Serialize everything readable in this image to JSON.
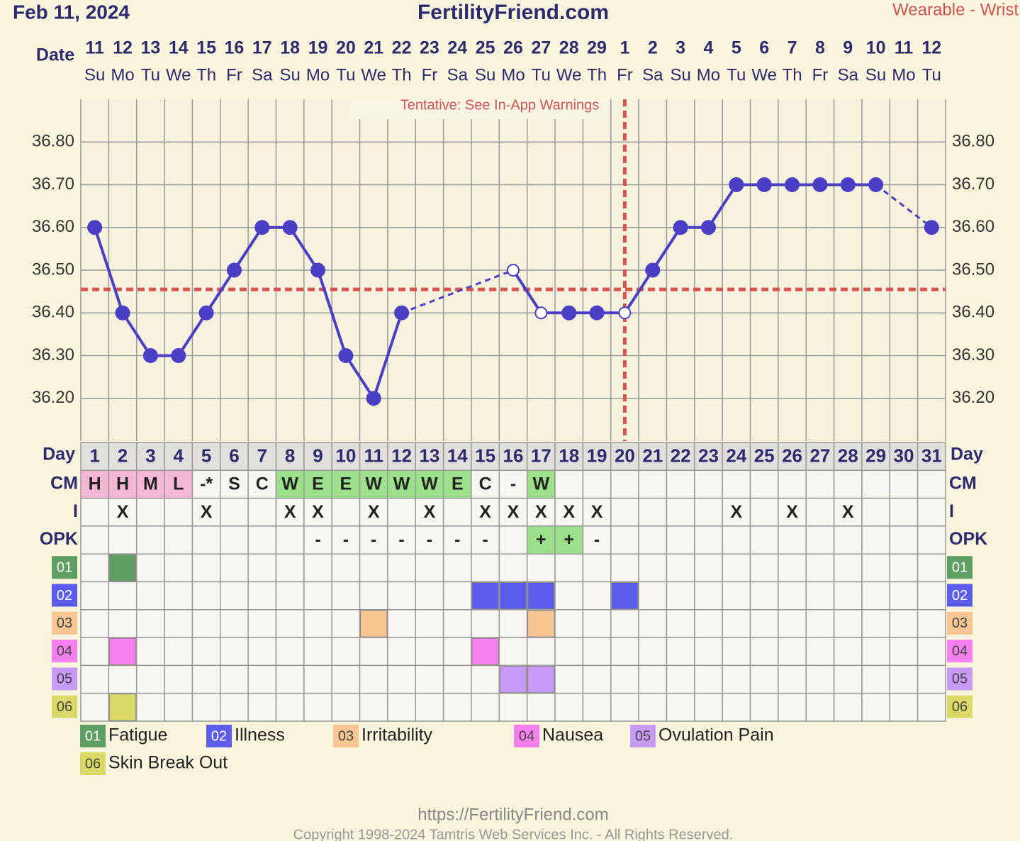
{
  "header": {
    "date": "Feb 11, 2024",
    "site": "FertilityFriend.com",
    "source": "Wearable - Wrist",
    "note": "Tentative: See In-App Warnings"
  },
  "dates": {
    "label": "Date",
    "days": [
      11,
      12,
      13,
      14,
      15,
      16,
      17,
      18,
      19,
      20,
      21,
      22,
      23,
      24,
      25,
      26,
      27,
      28,
      29,
      1,
      2,
      3,
      4,
      5,
      6,
      7,
      8,
      9,
      10,
      11,
      12
    ],
    "weekdays": [
      "Su",
      "Mo",
      "Tu",
      "We",
      "Th",
      "Fr",
      "Sa",
      "Su",
      "Mo",
      "Tu",
      "We",
      "Th",
      "Fr",
      "Sa",
      "Su",
      "Mo",
      "Tu",
      "We",
      "Th",
      "Fr",
      "Sa",
      "Su",
      "Mo",
      "Tu",
      "We",
      "Th",
      "Fr",
      "Sa",
      "Su",
      "Mo",
      "Tu"
    ]
  },
  "chart_data": {
    "type": "line",
    "x_label": "Day",
    "categories": [
      1,
      2,
      3,
      4,
      5,
      6,
      7,
      8,
      9,
      10,
      11,
      12,
      13,
      14,
      15,
      16,
      17,
      18,
      19,
      20,
      21,
      22,
      23,
      24,
      25,
      26,
      27,
      28,
      29,
      30,
      31
    ],
    "series": [
      {
        "color": "#4a3fc4",
        "values": [
          36.6,
          36.4,
          36.3,
          36.3,
          36.4,
          36.5,
          36.6,
          36.6,
          36.5,
          36.3,
          36.2,
          36.4,
          null,
          null,
          null,
          36.5,
          36.4,
          36.4,
          36.4,
          36.4,
          36.5,
          36.6,
          36.6,
          36.7,
          36.7,
          36.7,
          36.7,
          36.7,
          36.7,
          null,
          36.6
        ]
      }
    ],
    "hollow_points": [
      16,
      17,
      20
    ],
    "ylim": [
      36.1,
      36.9
    ],
    "yticks": [
      {
        "value": 36.2,
        "label": "36.20"
      },
      {
        "value": 36.3,
        "label": "36.30"
      },
      {
        "value": 36.4,
        "label": "36.40"
      },
      {
        "value": 36.5,
        "label": "36.50"
      },
      {
        "value": 36.6,
        "label": "36.60"
      },
      {
        "value": 36.7,
        "label": "36.70"
      },
      {
        "value": 36.8,
        "label": "36.80"
      }
    ],
    "coverline": 36.455,
    "ovulation_day": 20,
    "marker_color": "#d9534f"
  },
  "rows": [
    {
      "label": "CM",
      "values": [
        "H",
        "H",
        "M",
        "L",
        "-*",
        "S",
        "C",
        "W",
        "E",
        "E",
        "W",
        "W",
        "W",
        "E",
        "C",
        "-",
        "W",
        null,
        null,
        null,
        null,
        null,
        null,
        null,
        null,
        null,
        null,
        null,
        null,
        null,
        null
      ],
      "colors": [
        "#f4b8d4",
        "#f4b8d4",
        "#f4b8d4",
        "#f4b8d4",
        null,
        null,
        null,
        "#9de08c",
        "#9de08c",
        "#9de08c",
        "#9de08c",
        "#9de08c",
        "#9de08c",
        "#9de08c",
        null,
        null,
        "#9de08c",
        null,
        null,
        null,
        null,
        null,
        null,
        null,
        null,
        null,
        null,
        null,
        null,
        null,
        null
      ]
    },
    {
      "label": "I",
      "values": [
        null,
        "X",
        null,
        null,
        "X",
        null,
        null,
        "X",
        "X",
        null,
        "X",
        null,
        "X",
        null,
        "X",
        "X",
        "X",
        "X",
        "X",
        null,
        null,
        null,
        null,
        "X",
        null,
        "X",
        null,
        "X",
        null,
        null,
        null
      ],
      "colors": []
    },
    {
      "label": "OPK",
      "values": [
        null,
        null,
        null,
        null,
        null,
        null,
        null,
        null,
        "-",
        "-",
        "-",
        "-",
        "-",
        "-",
        "-",
        null,
        "+",
        "+",
        "-",
        null,
        null,
        null,
        null,
        null,
        null,
        null,
        null,
        null,
        null,
        null,
        null
      ],
      "colors": [
        null,
        null,
        null,
        null,
        null,
        null,
        null,
        null,
        null,
        null,
        null,
        null,
        null,
        null,
        null,
        null,
        "#9de08c",
        "#9de08c",
        null,
        null,
        null,
        null,
        null,
        null,
        null,
        null,
        null,
        null,
        null,
        null,
        null
      ]
    }
  ],
  "symptoms": [
    {
      "code": "01",
      "name": "Fatigue",
      "color": "#5f9e63",
      "days": [
        2
      ]
    },
    {
      "code": "02",
      "name": "Illness",
      "color": "#5d5ded",
      "days": [
        15,
        16,
        17,
        20
      ]
    },
    {
      "code": "03",
      "name": "Irritability",
      "color": "#f8c693",
      "days": [
        11,
        17
      ]
    },
    {
      "code": "04",
      "name": "Nausea",
      "color": "#f780f0",
      "days": [
        2,
        15
      ]
    },
    {
      "code": "05",
      "name": "Ovulation Pain",
      "color": "#c69af6",
      "days": [
        16,
        17
      ]
    },
    {
      "code": "06",
      "name": "Skin Break Out",
      "color": "#dcda66",
      "days": [
        2
      ]
    }
  ],
  "footer": {
    "url": "https://FertilityFriend.com",
    "copyright": "Copyright 1998-2024 Tamtris Web Services Inc. - All Rights Reserved."
  }
}
